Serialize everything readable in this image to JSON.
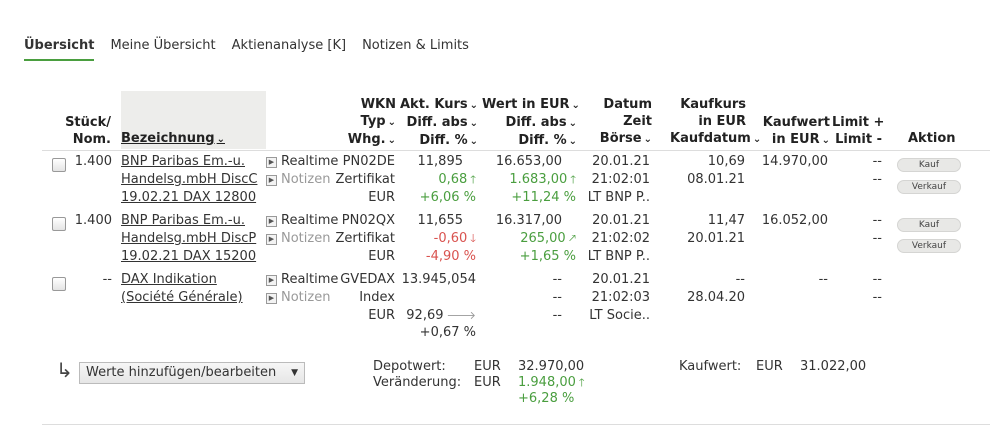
{
  "tabs": [
    "Übersicht",
    "Meine Übersicht",
    "Aktienanalyse [K]",
    "Notizen & Limits"
  ],
  "headers": {
    "stueck": [
      "Stück/",
      "Nom."
    ],
    "bezeichnung": "Bezeichnung",
    "wkn": [
      "WKN",
      "Typ",
      "Whg."
    ],
    "kurs": [
      "Akt. Kurs",
      "Diff. abs",
      "Diff. %"
    ],
    "wert": [
      "Wert in EUR",
      "Diff. abs",
      "Diff. %"
    ],
    "datum": [
      "Datum",
      "Zeit",
      "Börse"
    ],
    "kaufkurs": [
      "Kaufkurs",
      "in EUR",
      "Kaufdatum"
    ],
    "kaufwert": [
      "Kaufwert",
      "in EUR"
    ],
    "limit": [
      "Limit +",
      "Limit -"
    ],
    "aktion": "Aktion"
  },
  "rows": [
    {
      "stueck": "1.400",
      "name": [
        "BNP Paribas Em.-u.",
        "Handelsg.mbH DiscC",
        "19.02.21 DAX 12800"
      ],
      "realtime": "Realtime",
      "notizen": "Notizen",
      "wkn": "PN02DE",
      "typ": "Zertifikat",
      "whg": "EUR",
      "kurs": "11,895",
      "kurs_diff": "0,68",
      "kurs_pct": "+6,06 %",
      "wert": "16.653,00",
      "wert_diff": "1.683,00",
      "wert_pct": "+11,24 %",
      "datum": "20.01.21",
      "zeit": "21:02:01",
      "boerse": "LT BNP P..",
      "kaufkurs": "10,69",
      "kaufdatum": "08.01.21",
      "kaufwert": "14.970,00",
      "limit_plus": "--",
      "limit_minus": "--",
      "kauf": "Kauf",
      "verkauf": "Verkauf"
    },
    {
      "stueck": "1.400",
      "name": [
        "BNP Paribas Em.-u.",
        "Handelsg.mbH DiscP",
        "19.02.21 DAX 15200"
      ],
      "realtime": "Realtime",
      "notizen": "Notizen",
      "wkn": "PN02QX",
      "typ": "Zertifikat",
      "whg": "EUR",
      "kurs": "11,655",
      "kurs_diff": "-0,60",
      "kurs_pct": "-4,90 %",
      "wert": "16.317,00",
      "wert_diff": "265,00",
      "wert_pct": "+1,65 %",
      "datum": "20.01.21",
      "zeit": "21:02:02",
      "boerse": "LT BNP P..",
      "kaufkurs": "11,47",
      "kaufdatum": "20.01.21",
      "kaufwert": "16.052,00",
      "limit_plus": "--",
      "limit_minus": "--",
      "kauf": "Kauf",
      "verkauf": "Verkauf"
    },
    {
      "stueck": "--",
      "name": [
        "DAX Indikation",
        "(Société Générale)"
      ],
      "realtime": "Realtime",
      "notizen": "Notizen",
      "wkn": "GVEDAX",
      "typ": "Index",
      "whg": "EUR",
      "kurs": "13.945,054",
      "kurs_diff": "92,69",
      "kurs_pct": "+0,67 %",
      "wert": "--",
      "wert_diff": "--",
      "wert_pct": "--",
      "datum": "20.01.21",
      "zeit": "21:02:03",
      "boerse": "LT Socie..",
      "kaufkurs": "--",
      "kaufdatum": "28.04.20",
      "kaufwert": "--",
      "limit_plus": "--",
      "limit_minus": "--"
    }
  ],
  "footer": {
    "select_label": "Werte hinzufügen/bearbeiten",
    "depotwert_label": "Depotwert:",
    "depotwert_cur": "EUR",
    "depotwert": "32.970,00",
    "veraenderung_label": "Veränderung:",
    "veraenderung_cur": "EUR",
    "veraenderung": "1.948,00",
    "veraenderung_pct": "+6,28 %",
    "kaufwert_label": "Kaufwert:",
    "kaufwert_cur": "EUR",
    "kaufwert": "31.022,00"
  },
  "colors": {
    "accent": "#4a9e3f",
    "negative": "#d9534f",
    "neutral": "#999999"
  }
}
